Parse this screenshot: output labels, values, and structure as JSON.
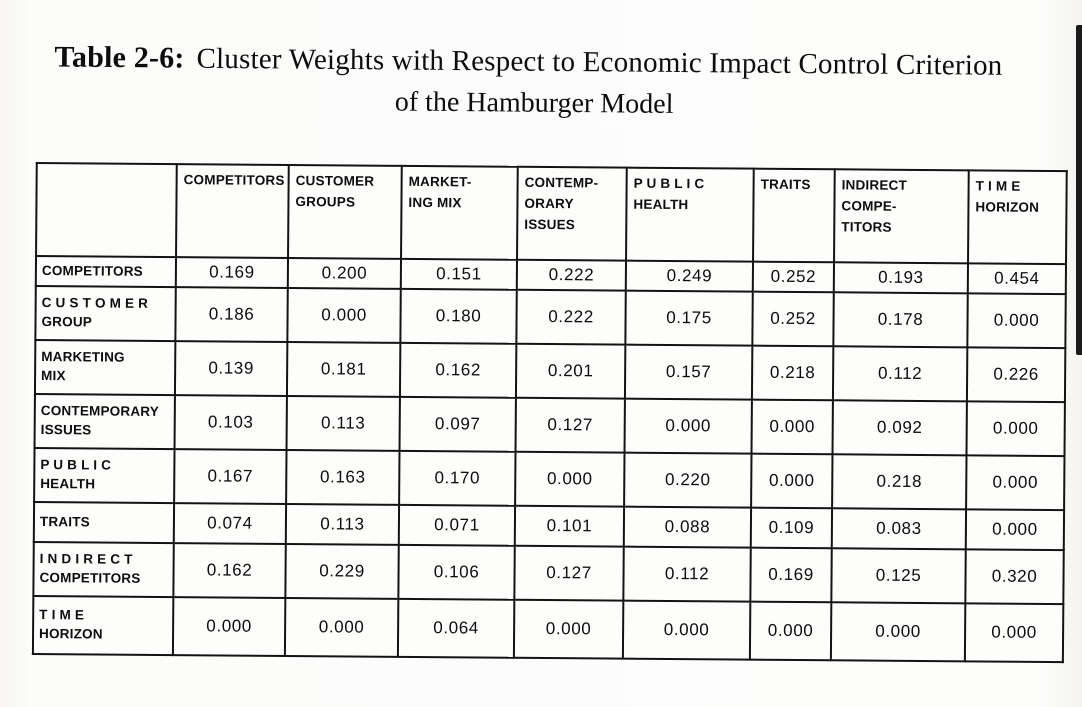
{
  "caption": {
    "label": "Table 2-6:",
    "line1": "Cluster Weights with Respect to Economic Impact Control Criterion",
    "line2": "of the Hamburger Model"
  },
  "colors": {
    "paper": "#fcfcfa",
    "ink": "#111111",
    "table_border": "#131313"
  },
  "table": {
    "columns": [
      "",
      "COMPETITORS",
      "CUSTOMER\nGROUPS",
      "MARKET-\nING MIX",
      "CONTEMP-\nORARY\nISSUES",
      "P U B L I C\nHEALTH",
      "TRAITS",
      "INDIRECT\nCOMPE-\nTITORS",
      "T I M E\nHORIZON"
    ],
    "rows": [
      {
        "header": "COMPETITORS",
        "values": [
          "0.169",
          "0.200",
          "0.151",
          "0.222",
          "0.249",
          "0.252",
          "0.193",
          "0.454"
        ]
      },
      {
        "header": "C U S T O M E R\nGROUP",
        "values": [
          "0.186",
          "0.000",
          "0.180",
          "0.222",
          "0.175",
          "0.252",
          "0.178",
          "0.000"
        ]
      },
      {
        "header": "MARKETING\nMIX",
        "values": [
          "0.139",
          "0.181",
          "0.162",
          "0.201",
          "0.157",
          "0.218",
          "0.112",
          "0.226"
        ]
      },
      {
        "header": "CONTEMPORARY\nISSUES",
        "values": [
          "0.103",
          "0.113",
          "0.097",
          "0.127",
          "0.000",
          "0.000",
          "0.092",
          "0.000"
        ]
      },
      {
        "header": "P U B L I C\nHEALTH",
        "values": [
          "0.167",
          "0.163",
          "0.170",
          "0.000",
          "0.220",
          "0.000",
          "0.218",
          "0.000"
        ]
      },
      {
        "header": "TRAITS",
        "values": [
          "0.074",
          "0.113",
          "0.071",
          "0.101",
          "0.088",
          "0.109",
          "0.083",
          "0.000"
        ]
      },
      {
        "header": "I N D I R E C T\nCOMPETITORS",
        "values": [
          "0.162",
          "0.229",
          "0.106",
          "0.127",
          "0.112",
          "0.169",
          "0.125",
          "0.320"
        ]
      },
      {
        "header": "T I M E\nHORIZON",
        "values": [
          "0.000",
          "0.000",
          "0.064",
          "0.000",
          "0.000",
          "0.000",
          "0.000",
          "0.000"
        ]
      }
    ]
  }
}
